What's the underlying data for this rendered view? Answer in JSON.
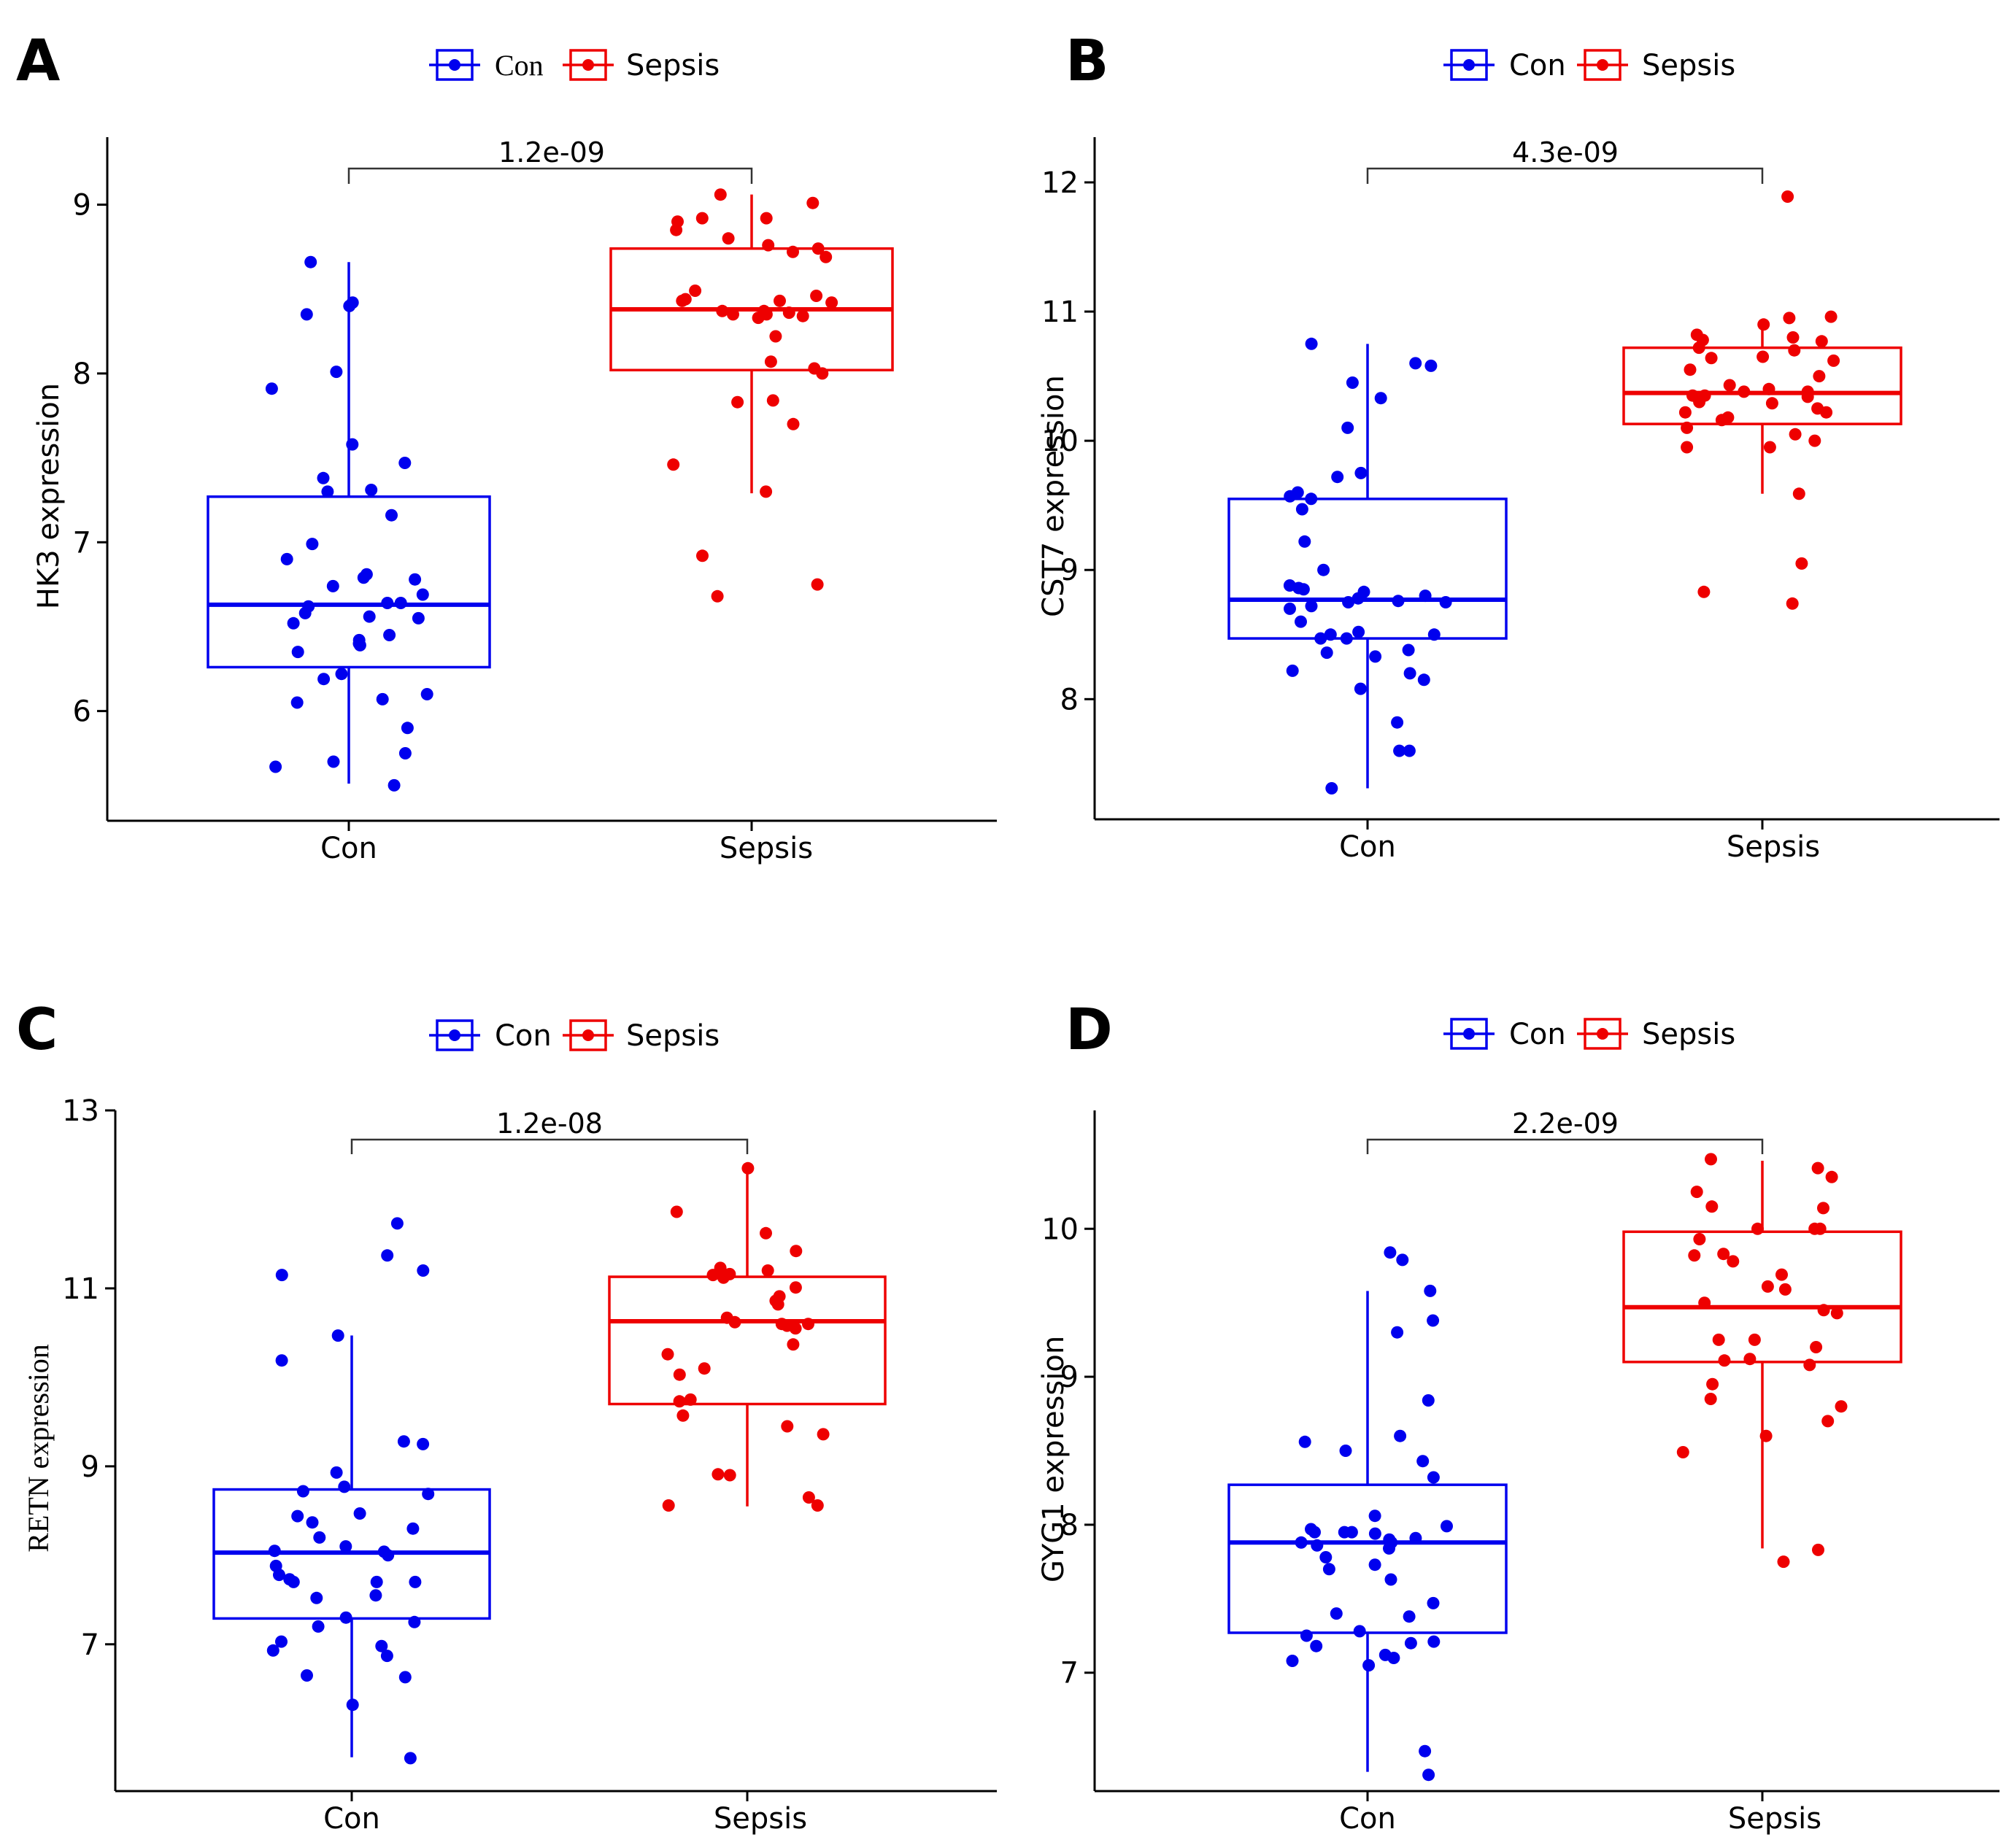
{
  "colors": {
    "con": "#0000ee",
    "sepsis": "#ee0000",
    "axis": "#000000",
    "bracket": "#333333"
  },
  "chart_data": [
    {
      "panel": "A",
      "type": "box",
      "legend": [
        "Con",
        "Sepsis"
      ],
      "categories": [
        "Con",
        "Sepsis"
      ],
      "ylabel": "HK3 expression",
      "ylim": [
        5.35,
        9.4
      ],
      "yticks": [
        6,
        7,
        8,
        9
      ],
      "pvalue": "1.2e-09",
      "boxes": [
        {
          "group": "Con",
          "min": 5.57,
          "q1": 6.26,
          "median": 6.63,
          "q3": 7.27,
          "max": 8.66
        },
        {
          "group": "Sepsis",
          "min": 7.29,
          "q1": 8.02,
          "median": 8.38,
          "q3": 8.74,
          "max": 9.06
        }
      ],
      "points": {
        "Con": [
          6.35,
          6.64,
          6.42,
          6.22,
          6.99,
          6.64,
          6.45,
          8.4,
          8.42,
          7.58,
          7.91,
          6.79,
          6.81,
          6.74,
          7.47,
          7.38,
          8.01,
          8.35,
          6.1,
          6.07,
          5.9,
          5.75,
          5.67,
          6.56,
          6.55,
          6.58,
          7.16,
          6.52,
          6.78,
          6.05,
          6.19,
          6.4,
          7.3,
          5.7,
          6.39,
          6.9,
          7.31,
          6.69,
          6.62,
          8.66,
          5.56
        ],
        "Sepsis": [
          7.3,
          8.9,
          8.8,
          9.01,
          6.92,
          6.75,
          8.22,
          7.7,
          8.43,
          8.43,
          8.0,
          8.37,
          8.33,
          7.84,
          8.07,
          8.69,
          8.74,
          8.85,
          8.34,
          8.46,
          8.37,
          8.49,
          8.42,
          8.35,
          8.36,
          8.76,
          8.72,
          8.92,
          9.06,
          8.92,
          8.44,
          8.35,
          8.03,
          7.83,
          6.68,
          7.46
        ]
      }
    },
    {
      "panel": "B",
      "type": "box",
      "legend": [
        "Con",
        "Sepsis"
      ],
      "categories": [
        "Con",
        "Sepsis"
      ],
      "ylabel": "CST7 expression",
      "ylim": [
        7.07,
        12.35
      ],
      "yticks": [
        8,
        9,
        10,
        11,
        12
      ],
      "pvalue": "4.3e-09",
      "boxes": [
        {
          "group": "Con",
          "min": 7.31,
          "q1": 8.47,
          "median": 8.77,
          "q3": 9.55,
          "max": 10.75
        },
        {
          "group": "Sepsis",
          "min": 9.59,
          "q1": 10.13,
          "median": 10.37,
          "q3": 10.72,
          "max": 10.93
        }
      ],
      "points": {
        "Con": [
          8.5,
          8.75,
          8.85,
          8.52,
          10.6,
          10.45,
          9.72,
          9.55,
          10.1,
          9.75,
          8.7,
          8.47,
          8.33,
          8.15,
          8.2,
          8.22,
          8.6,
          8.38,
          8.83,
          9.0,
          9.47,
          9.6,
          9.57,
          10.33,
          10.75,
          7.6,
          7.6,
          7.31,
          8.86,
          8.76,
          8.78,
          8.88,
          8.72,
          8.75,
          8.8,
          8.47,
          8.36,
          9.22,
          8.5,
          8.08,
          7.82,
          10.58
        ],
        "Sepsis": [
          10.22,
          10.72,
          10.62,
          10.43,
          10.55,
          10.7,
          10.0,
          9.95,
          9.95,
          10.25,
          10.29,
          10.3,
          10.38,
          10.9,
          10.96,
          10.95,
          10.65,
          10.18,
          10.22,
          10.1,
          10.05,
          10.35,
          10.35,
          10.5,
          10.82,
          10.78,
          10.8,
          10.77,
          10.64,
          10.34,
          10.38,
          10.4,
          10.16,
          9.59,
          9.05,
          8.74,
          8.83,
          11.89
        ]
      }
    },
    {
      "panel": "C",
      "type": "box",
      "legend": [
        "Con",
        "Sepsis"
      ],
      "categories": [
        "Con",
        "Sepsis"
      ],
      "ylabel": "RETN expression",
      "ylim": [
        5.35,
        13.0
      ],
      "yticks": [
        7,
        9,
        11,
        13
      ],
      "pvalue": "1.2e-08",
      "boxes": [
        {
          "group": "Con",
          "min": 5.73,
          "q1": 7.29,
          "median": 8.03,
          "q3": 8.74,
          "max": 10.47
        },
        {
          "group": "Sepsis",
          "min": 8.55,
          "q1": 9.7,
          "median": 10.63,
          "q3": 11.13,
          "max": 12.34
        }
      ],
      "points": {
        "Con": [
          7.78,
          7.7,
          8.2,
          8.44,
          9.25,
          8.0,
          6.65,
          11.73,
          11.2,
          11.15,
          10.47,
          10.19,
          9.28,
          8.93,
          8.77,
          8.37,
          8.3,
          8.47,
          8.05,
          8.1,
          8.04,
          7.7,
          7.7,
          7.73,
          7.55,
          7.52,
          7.25,
          7.3,
          7.2,
          6.87,
          6.63,
          8.72,
          8.69,
          6.93,
          7.03,
          6.98,
          6.32,
          7.88,
          11.37,
          5.72
        ],
        "Sepsis": [
          11.2,
          11.23,
          11.01,
          8.9,
          8.91,
          10.26,
          9.75,
          9.36,
          9.45,
          10.1,
          10.86,
          10.91,
          10.67,
          10.82,
          10.55,
          10.6,
          10.37,
          11.42,
          11.15,
          11.16,
          11.12,
          10.62,
          10.6,
          10.58,
          9.73,
          9.57,
          10.03,
          11.62,
          11.86,
          8.65,
          8.56,
          8.56,
          12.35
        ]
      }
    },
    {
      "panel": "D",
      "type": "box",
      "legend": [
        "Con",
        "Sepsis"
      ],
      "categories": [
        "Con",
        "Sepsis"
      ],
      "ylabel": "GYG1 expression",
      "ylim": [
        6.2,
        10.8
      ],
      "yticks": [
        7,
        8,
        9,
        10
      ],
      "pvalue": "2.2e-09",
      "boxes": [
        {
          "group": "Con",
          "min": 6.33,
          "q1": 7.27,
          "median": 7.88,
          "q3": 8.27,
          "max": 9.58
        },
        {
          "group": "Sepsis",
          "min": 7.84,
          "q1": 9.1,
          "median": 9.47,
          "q3": 9.98,
          "max": 10.46
        }
      ],
      "points": {
        "Con": [
          7.63,
          7.97,
          7.95,
          7.99,
          8.6,
          8.43,
          7.78,
          7.73,
          7.88,
          7.9,
          7.94,
          7.86,
          7.84,
          7.95,
          7.91,
          7.88,
          7.28,
          7.47,
          7.38,
          7.4,
          7.21,
          7.18,
          7.12,
          7.08,
          7.05,
          7.2,
          9.84,
          9.3,
          9.58,
          8.84,
          8.56,
          8.5,
          8.32,
          9.79,
          7.7,
          7.25,
          7.1,
          7.95,
          8.06,
          9.38,
          6.47,
          6.31
        ],
        "Sepsis": [
          9.25,
          10.25,
          10.0,
          9.82,
          9.78,
          9.45,
          9.43,
          9.08,
          9.12,
          9.25,
          9.11,
          9.2,
          9.5,
          9.59,
          9.69,
          9.83,
          10.15,
          10.0,
          9.93,
          9.61,
          10.41,
          10.35,
          10.14,
          10.0,
          8.95,
          8.7,
          8.85,
          8.8,
          8.6,
          8.49,
          7.83,
          7.75,
          10.47
        ]
      }
    }
  ]
}
